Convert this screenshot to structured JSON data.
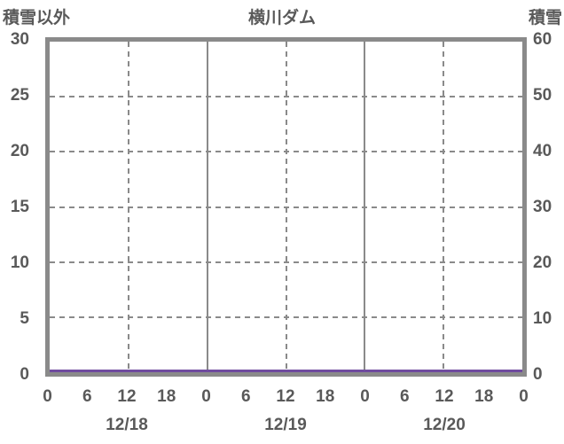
{
  "chart_data": {
    "type": "line",
    "title": "横川ダム",
    "left_axis": {
      "label": "積雪以外",
      "min": 0,
      "max": 30,
      "ticks": [
        30,
        25,
        20,
        15,
        10,
        5,
        0
      ]
    },
    "right_axis": {
      "label": "積雪",
      "min": 0,
      "max": 60,
      "ticks": [
        60,
        50,
        40,
        30,
        20,
        10,
        0
      ]
    },
    "x_axis": {
      "range_hours": [
        0,
        72
      ],
      "tick_interval_hours": 6,
      "tick_labels": [
        "0",
        "6",
        "12",
        "18",
        "0",
        "6",
        "12",
        "18",
        "0",
        "6",
        "12",
        "18",
        "0"
      ],
      "date_labels": [
        {
          "label": "12/18",
          "hour": 12
        },
        {
          "label": "12/19",
          "hour": 36
        },
        {
          "label": "12/20",
          "hour": 60
        }
      ]
    },
    "grid": {
      "horizontal_dashed_values": [
        25,
        20,
        15,
        10,
        5
      ],
      "vertical_dashed_hours": [
        12,
        36,
        60
      ],
      "vertical_solid_hours": [
        24,
        48
      ],
      "on": true
    },
    "series": [
      {
        "name": "積雪以外",
        "axis": "left",
        "color": "#6f4b9f",
        "x_hours": [
          0,
          6,
          12,
          18,
          24,
          30,
          36,
          42,
          48,
          54,
          60,
          66,
          72
        ],
        "values": [
          0,
          0,
          0,
          0,
          0,
          0,
          0,
          0,
          0,
          0,
          0,
          0,
          0
        ]
      }
    ],
    "colors": {
      "frame": "#8a8a8a",
      "grid": "#8a8a8a",
      "text": "#595959",
      "line": "#6f4b9f"
    }
  }
}
